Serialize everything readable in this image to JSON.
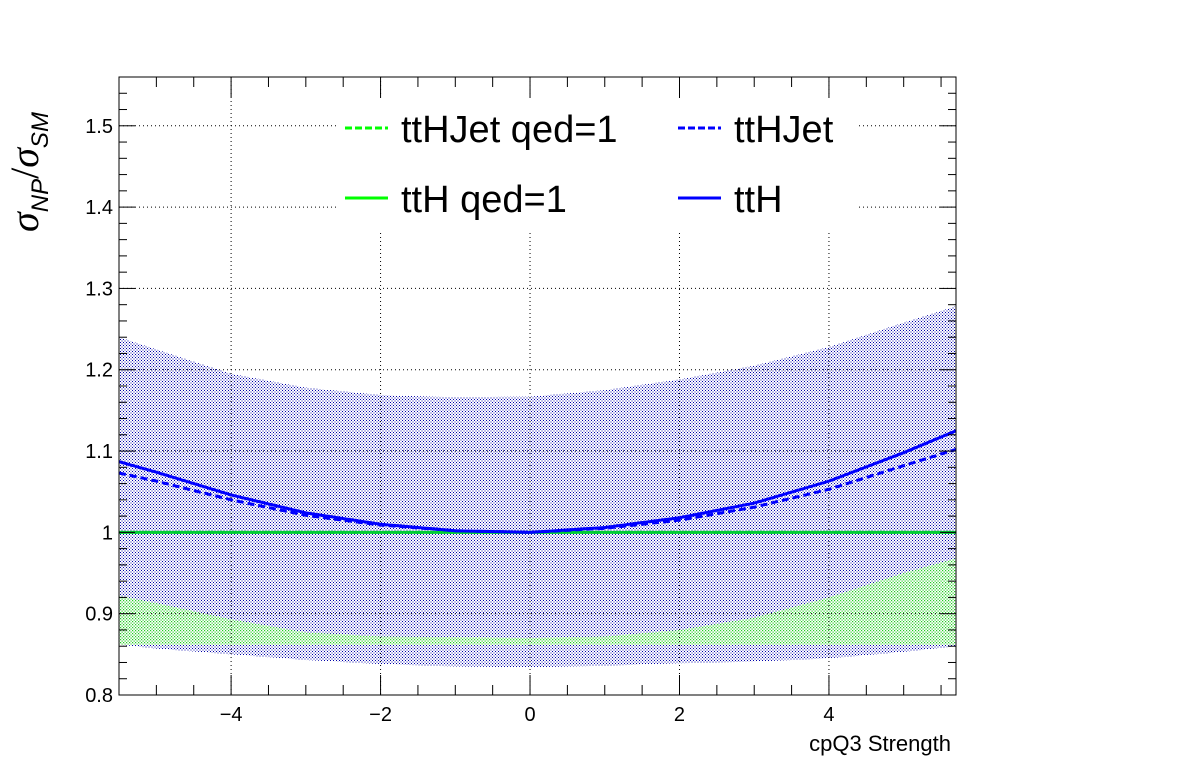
{
  "chart_data": {
    "type": "line",
    "xlabel": "cpQ3 Strength",
    "ylabel": {
      "main": "σ",
      "sub1": "NP",
      "sep": "/",
      "main2": "σ",
      "sub2": "SM"
    },
    "xlim": [
      -5.5,
      5.7
    ],
    "ylim": [
      0.8,
      1.56
    ],
    "xticks": [
      -4,
      -2,
      0,
      2,
      4
    ],
    "xtick_labels": [
      "−4",
      "−2",
      "0",
      "2",
      "4"
    ],
    "yticks": [
      0.8,
      0.9,
      1,
      1.1,
      1.2,
      1.3,
      1.4,
      1.5
    ],
    "ytick_labels": [
      "0.8",
      "0.9",
      "1",
      "1.1",
      "1.2",
      "1.3",
      "1.4",
      "1.5"
    ],
    "grid": true,
    "legend_position": "top",
    "legend": [
      {
        "label": "ttHJet qed=1",
        "color": "#00ff00",
        "style": "dashed"
      },
      {
        "label": "ttHJet",
        "color": "#0000ff",
        "style": "dashed"
      },
      {
        "label": "ttH qed=1",
        "color": "#00ff00",
        "style": "solid"
      },
      {
        "label": "ttH",
        "color": "#0000ff",
        "style": "solid"
      }
    ],
    "colors": {
      "green": "#00ff00",
      "blue": "#0000ff",
      "green_band": "#88ee88",
      "blue_band": "#3333aa"
    },
    "x": [
      -5.5,
      -5,
      -4,
      -3,
      -2,
      -1,
      0,
      1,
      2,
      3,
      4,
      5,
      5.7
    ],
    "series": [
      {
        "name": "ttH",
        "style": "solid",
        "color": "#0000ff",
        "values": [
          1.087,
          1.074,
          1.046,
          1.024,
          1.01,
          1.002,
          1.0,
          1.006,
          1.018,
          1.036,
          1.063,
          1.098,
          1.125
        ]
      },
      {
        "name": "ttHJet",
        "style": "dashed",
        "color": "#0000ff",
        "values": [
          1.073,
          1.063,
          1.04,
          1.021,
          1.009,
          1.002,
          1.0,
          1.005,
          1.015,
          1.031,
          1.053,
          1.082,
          1.102
        ]
      },
      {
        "name": "ttH qed=1",
        "style": "solid",
        "color": "#00ff00",
        "values": [
          1.0,
          1.0,
          1.0,
          1.0,
          1.0,
          1.0,
          1.0,
          1.0,
          1.0,
          1.0,
          1.0,
          1.0,
          1.0
        ]
      },
      {
        "name": "ttHJet qed=1",
        "style": "dashed",
        "color": "#00ff00",
        "values": [
          1.0,
          1.0,
          1.0,
          1.0,
          1.0,
          1.0,
          1.0,
          1.0,
          1.0,
          1.0,
          1.0,
          1.0,
          1.0
        ]
      }
    ],
    "bands": [
      {
        "series": "ttH",
        "color": "#3333aa",
        "upper": [
          1.24,
          1.225,
          1.195,
          1.178,
          1.169,
          1.166,
          1.167,
          1.175,
          1.188,
          1.205,
          1.228,
          1.258,
          1.278
        ],
        "lower": [
          0.862,
          0.857,
          0.85,
          0.843,
          0.838,
          0.835,
          0.834,
          0.836,
          0.839,
          0.841,
          0.845,
          0.853,
          0.86
        ]
      },
      {
        "series": "ttH qed=1",
        "color": "#88ee88",
        "upper": [
          0.922,
          0.913,
          0.893,
          0.877,
          0.872,
          0.871,
          0.87,
          0.872,
          0.88,
          0.895,
          0.92,
          0.95,
          0.968
        ],
        "lower": [
          0.862,
          0.862,
          0.862,
          0.862,
          0.862,
          0.862,
          0.862,
          0.862,
          0.862,
          0.862,
          0.862,
          0.862,
          0.862
        ]
      }
    ]
  }
}
